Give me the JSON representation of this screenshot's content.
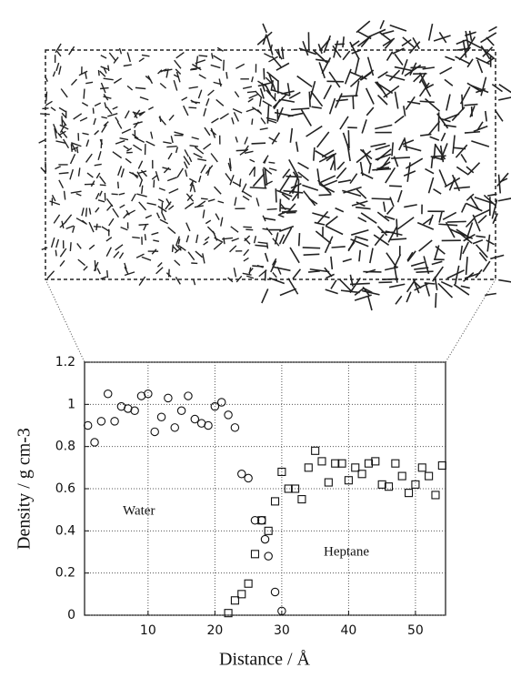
{
  "chart_data": {
    "type": "scatter",
    "xlabel": "Distance / Å",
    "ylabel": "Density / g cm-3",
    "annotations": [
      "Water",
      "Heptane"
    ],
    "xlim": [
      0.5,
      54.5
    ],
    "ylim": [
      0,
      1.2
    ],
    "xticks": [
      10,
      20,
      30,
      40,
      50
    ],
    "yticks": [
      0,
      0.2,
      0.4,
      0.6,
      0.8,
      1,
      1.2
    ],
    "grid": true,
    "series": [
      {
        "name": "Water",
        "marker": "circle",
        "color": "#111111",
        "x": [
          1,
          2,
          3,
          4,
          5,
          6,
          7,
          8,
          9,
          10,
          11,
          12,
          13,
          14,
          15,
          16,
          17,
          18,
          19,
          20,
          21,
          22,
          23,
          24,
          25,
          26,
          27,
          27.5,
          28,
          29,
          30
        ],
        "values": [
          0.9,
          0.82,
          0.92,
          1.05,
          0.92,
          0.99,
          0.98,
          0.97,
          1.04,
          1.05,
          0.87,
          0.94,
          1.03,
          0.89,
          0.97,
          1.04,
          0.93,
          0.91,
          0.9,
          0.99,
          1.01,
          0.95,
          0.89,
          0.67,
          0.65,
          0.45,
          0.45,
          0.36,
          0.28,
          0.11,
          0.02
        ]
      },
      {
        "name": "Heptane",
        "marker": "square",
        "color": "#111111",
        "x": [
          22,
          23,
          24,
          25,
          26,
          27,
          28,
          29,
          30,
          31,
          32,
          33,
          34,
          35,
          36,
          37,
          38,
          39,
          40,
          41,
          42,
          43,
          44,
          45,
          46,
          47,
          48,
          49,
          50,
          51,
          52,
          53,
          54
        ],
        "values": [
          0.01,
          0.07,
          0.1,
          0.15,
          0.29,
          0.45,
          0.4,
          0.54,
          0.68,
          0.6,
          0.6,
          0.55,
          0.7,
          0.78,
          0.73,
          0.63,
          0.72,
          0.72,
          0.64,
          0.7,
          0.67,
          0.72,
          0.73,
          0.62,
          0.61,
          0.72,
          0.66,
          0.58,
          0.62,
          0.7,
          0.66,
          0.57,
          0.71
        ]
      }
    ]
  }
}
